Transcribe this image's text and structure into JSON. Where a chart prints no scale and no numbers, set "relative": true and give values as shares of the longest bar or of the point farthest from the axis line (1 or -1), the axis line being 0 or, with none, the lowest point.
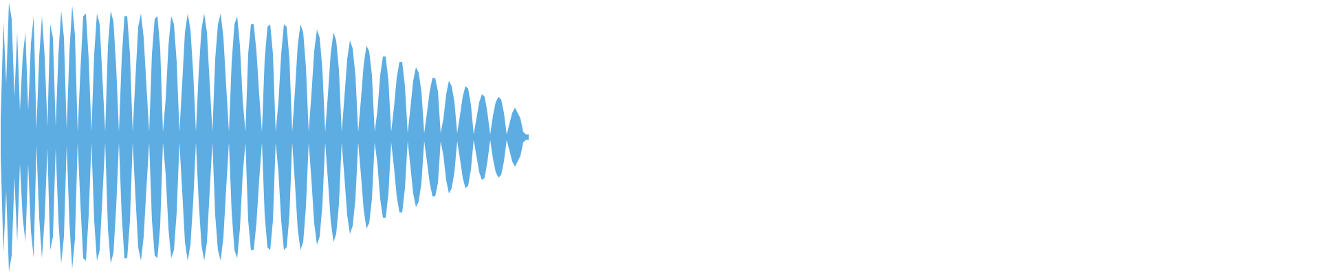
{
  "chart_data": {
    "type": "area",
    "relative": true,
    "categories": [
      null,
      null,
      null,
      null,
      null,
      null,
      null,
      null,
      null,
      null,
      null,
      null,
      null,
      null,
      null,
      null,
      null,
      null,
      null,
      null,
      null,
      null,
      null,
      null,
      null,
      null,
      null,
      null,
      null,
      null,
      null,
      null,
      null,
      null,
      null,
      null,
      null,
      null,
      null,
      null,
      null,
      null,
      null,
      null,
      null,
      null,
      null,
      null,
      null,
      null,
      null,
      null,
      null,
      null,
      null,
      null,
      null,
      null,
      null,
      null,
      null,
      null,
      null,
      null,
      null,
      null,
      null,
      null,
      null,
      null,
      null,
      null,
      null,
      null,
      null,
      null,
      null,
      null,
      null,
      null,
      null,
      null,
      null,
      null,
      null,
      null,
      null,
      null,
      null,
      null,
      null,
      null,
      null,
      null,
      null,
      null,
      null,
      null,
      null,
      null,
      null,
      null,
      null,
      null,
      null,
      null,
      null,
      null,
      null,
      null,
      null,
      null,
      null,
      null,
      null,
      null,
      null,
      null,
      null,
      null,
      null,
      null,
      null,
      null,
      null,
      null,
      null,
      null,
      null,
      null,
      null,
      null,
      null,
      null,
      null,
      null,
      null,
      null,
      null,
      null,
      null,
      null,
      null,
      null,
      null,
      null,
      null,
      null,
      null,
      null,
      null,
      null,
      null,
      null,
      null,
      null,
      null,
      null,
      null,
      null,
      null,
      null,
      null,
      null,
      null,
      null,
      null,
      null,
      null,
      null,
      null,
      null,
      null,
      null,
      null,
      null,
      null,
      null,
      null,
      null,
      null,
      null,
      null,
      null,
      null,
      null,
      null,
      null,
      null,
      null,
      null,
      null,
      null
    ],
    "series": [
      {
        "color": "#5dade2",
        "values": [
          0.14,
          0.86,
          0.4,
          1.0,
          0.88,
          0.3,
          0.78,
          0.2,
          0.6,
          0.78,
          0.2,
          0.7,
          0.9,
          0.06,
          0.6,
          0.9,
          0.6,
          0.08,
          0.84,
          0.74,
          0.08,
          0.62,
          0.94,
          0.74,
          0.06,
          0.64,
          0.98,
          0.76,
          0.04,
          0.5,
          0.9,
          0.92,
          0.58,
          0.04,
          0.62,
          0.92,
          0.84,
          0.44,
          0.04,
          0.68,
          0.94,
          0.86,
          0.52,
          0.04,
          0.58,
          0.9,
          0.9,
          0.62,
          0.04,
          0.44,
          0.82,
          0.92,
          0.74,
          0.38,
          0.04,
          0.62,
          0.88,
          0.9,
          0.66,
          0.04,
          0.28,
          0.68,
          0.9,
          0.84,
          0.56,
          0.04,
          0.4,
          0.78,
          0.92,
          0.8,
          0.48,
          0.04,
          0.48,
          0.8,
          0.92,
          0.78,
          0.4,
          0.04,
          0.58,
          0.84,
          0.92,
          0.74,
          0.38,
          0.04,
          0.56,
          0.84,
          0.9,
          0.68,
          0.28,
          0.04,
          0.62,
          0.84,
          0.84,
          0.64,
          0.32,
          0.04,
          0.58,
          0.82,
          0.84,
          0.62,
          0.04,
          0.26,
          0.62,
          0.84,
          0.82,
          0.58,
          0.04,
          0.34,
          0.68,
          0.84,
          0.78,
          0.52,
          0.04,
          0.32,
          0.64,
          0.8,
          0.74,
          0.5,
          0.04,
          0.32,
          0.62,
          0.78,
          0.72,
          0.5,
          0.04,
          0.3,
          0.58,
          0.72,
          0.66,
          0.46,
          0.04,
          0.28,
          0.54,
          0.68,
          0.64,
          0.46,
          0.04,
          0.2,
          0.46,
          0.6,
          0.6,
          0.42,
          0.04,
          0.22,
          0.44,
          0.56,
          0.56,
          0.38,
          0.03,
          0.22,
          0.42,
          0.52,
          0.48,
          0.34,
          0.03,
          0.18,
          0.34,
          0.44,
          0.44,
          0.34,
          0.03,
          0.14,
          0.32,
          0.42,
          0.38,
          0.26,
          0.03,
          0.16,
          0.3,
          0.38,
          0.36,
          0.24,
          0.02,
          0.14,
          0.26,
          0.32,
          0.3,
          0.18,
          0.02,
          0.16,
          0.26,
          0.3,
          0.28,
          0.18,
          0.02,
          0.1,
          0.18,
          0.22,
          0.18,
          0.14,
          0.04,
          0.02,
          0.02
        ]
      },
      {
        "color": "#5dade2",
        "values": [
          -0.14,
          -0.86,
          -0.4,
          -1.0,
          -0.88,
          -0.3,
          -0.78,
          -0.2,
          -0.6,
          -0.78,
          -0.2,
          -0.7,
          -0.9,
          -0.06,
          -0.6,
          -0.9,
          -0.6,
          -0.08,
          -0.84,
          -0.74,
          -0.08,
          -0.62,
          -0.94,
          -0.74,
          -0.06,
          -0.64,
          -0.98,
          -0.76,
          -0.04,
          -0.5,
          -0.9,
          -0.92,
          -0.58,
          -0.04,
          -0.62,
          -0.92,
          -0.84,
          -0.44,
          -0.04,
          -0.68,
          -0.94,
          -0.86,
          -0.52,
          -0.04,
          -0.58,
          -0.9,
          -0.9,
          -0.62,
          -0.04,
          -0.44,
          -0.82,
          -0.92,
          -0.74,
          -0.38,
          -0.04,
          -0.62,
          -0.88,
          -0.9,
          -0.66,
          -0.04,
          -0.28,
          -0.68,
          -0.9,
          -0.84,
          -0.56,
          -0.04,
          -0.4,
          -0.78,
          -0.92,
          -0.8,
          -0.48,
          -0.04,
          -0.48,
          -0.8,
          -0.92,
          -0.78,
          -0.4,
          -0.04,
          -0.58,
          -0.84,
          -0.92,
          -0.74,
          -0.38,
          -0.04,
          -0.56,
          -0.84,
          -0.9,
          -0.68,
          -0.28,
          -0.04,
          -0.62,
          -0.84,
          -0.84,
          -0.64,
          -0.32,
          -0.04,
          -0.58,
          -0.82,
          -0.84,
          -0.62,
          -0.04,
          -0.26,
          -0.62,
          -0.84,
          -0.82,
          -0.58,
          -0.04,
          -0.34,
          -0.68,
          -0.84,
          -0.78,
          -0.52,
          -0.04,
          -0.32,
          -0.64,
          -0.8,
          -0.74,
          -0.5,
          -0.04,
          -0.32,
          -0.62,
          -0.78,
          -0.72,
          -0.5,
          -0.04,
          -0.3,
          -0.58,
          -0.72,
          -0.66,
          -0.46,
          -0.04,
          -0.28,
          -0.54,
          -0.68,
          -0.64,
          -0.46,
          -0.04,
          -0.2,
          -0.46,
          -0.6,
          -0.6,
          -0.42,
          -0.04,
          -0.22,
          -0.44,
          -0.56,
          -0.56,
          -0.38,
          -0.03,
          -0.22,
          -0.42,
          -0.52,
          -0.48,
          -0.34,
          -0.03,
          -0.18,
          -0.34,
          -0.44,
          -0.44,
          -0.34,
          -0.03,
          -0.14,
          -0.32,
          -0.42,
          -0.38,
          -0.26,
          -0.03,
          -0.16,
          -0.3,
          -0.38,
          -0.36,
          -0.24,
          -0.02,
          -0.14,
          -0.26,
          -0.32,
          -0.3,
          -0.18,
          -0.02,
          -0.16,
          -0.26,
          -0.3,
          -0.28,
          -0.18,
          -0.02,
          -0.1,
          -0.18,
          -0.22,
          -0.18,
          -0.14,
          -0.04,
          -0.02,
          -0.02
        ]
      }
    ],
    "ref_lines": [
      {
        "axis": "y",
        "value": 0,
        "color": "#5dade2"
      }
    ]
  }
}
